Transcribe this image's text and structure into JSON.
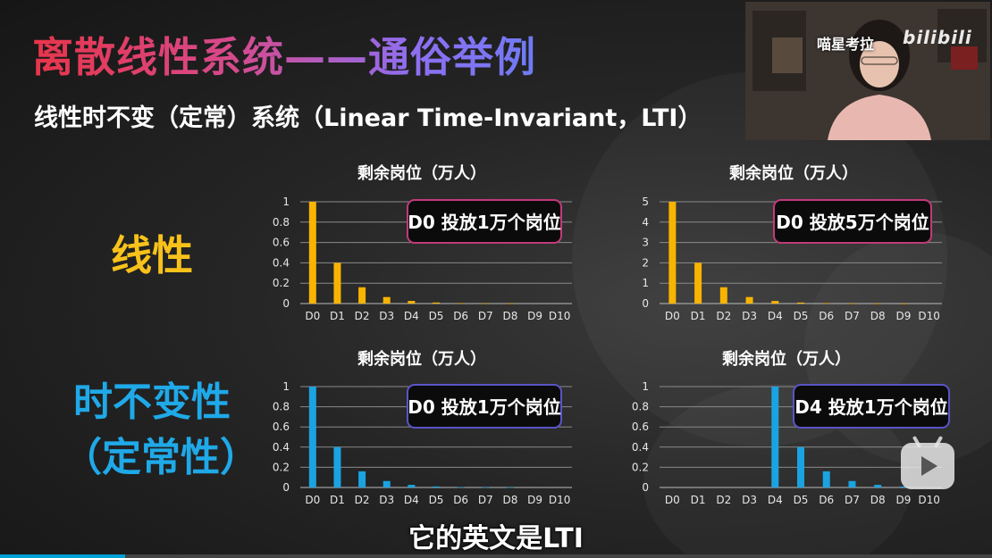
{
  "slide": {
    "title": "离散线性系统——通俗举例",
    "subtitle": "线性时不变（定常）系统（Linear Time-Invariant，LTI）",
    "row_labels": {
      "linear": "线性",
      "time_invariant_line1": "时不变性",
      "time_invariant_line2": "（定常性）"
    }
  },
  "overlay": {
    "channel_name": "喵星考拉",
    "brand_logo": "bilibili",
    "caption": "它的英文是LTI",
    "play_button_icon": "bilibili-tv-play-icon",
    "progress_fraction": 0.126
  },
  "colors": {
    "linear_series": "#f8b400",
    "ti_series": "#1aa3e0",
    "annotation_border_linear": "#c23a7a",
    "annotation_border_ti": "#5a54c8"
  },
  "chart_data": [
    {
      "type": "bar",
      "title": "剩余岗位（万人）",
      "annotation": "D0 投放1万个岗位",
      "categories": [
        "D0",
        "D1",
        "D2",
        "D3",
        "D4",
        "D5",
        "D6",
        "D7",
        "D8",
        "D9",
        "D10"
      ],
      "values": [
        1,
        0.4,
        0.16,
        0.064,
        0.026,
        0.01,
        0.004,
        0.002,
        0.001,
        0,
        0
      ],
      "yticks": [
        "0",
        "0.2",
        "0.4",
        "0.6",
        "0.8",
        "1"
      ],
      "ylim": [
        0,
        1
      ],
      "color": "#f8b400"
    },
    {
      "type": "bar",
      "title": "剩余岗位（万人）",
      "annotation": "D0 投放5万个岗位",
      "categories": [
        "D0",
        "D1",
        "D2",
        "D3",
        "D4",
        "D5",
        "D6",
        "D7",
        "D8",
        "D9",
        "D10"
      ],
      "values": [
        5,
        2,
        0.8,
        0.32,
        0.128,
        0.05,
        0.02,
        0.008,
        0.003,
        0.001,
        0
      ],
      "yticks": [
        "0",
        "1",
        "2",
        "3",
        "4",
        "5"
      ],
      "ylim": [
        0,
        5
      ],
      "color": "#f8b400"
    },
    {
      "type": "bar",
      "title": "剩余岗位（万人）",
      "annotation": "D0 投放1万个岗位",
      "categories": [
        "D0",
        "D1",
        "D2",
        "D3",
        "D4",
        "D5",
        "D6",
        "D7",
        "D8",
        "D9",
        "D10"
      ],
      "values": [
        1,
        0.4,
        0.16,
        0.064,
        0.026,
        0.01,
        0.004,
        0.002,
        0.001,
        0,
        0
      ],
      "yticks": [
        "0",
        "0.2",
        "0.4",
        "0.6",
        "0.8",
        "1"
      ],
      "ylim": [
        0,
        1
      ],
      "color": "#1aa3e0"
    },
    {
      "type": "bar",
      "title": "剩余岗位（万人）",
      "annotation": "D4 投放1万个岗位",
      "categories": [
        "D0",
        "D1",
        "D2",
        "D3",
        "D4",
        "D5",
        "D6",
        "D7",
        "D8",
        "D9",
        "D10"
      ],
      "values": [
        0,
        0,
        0,
        0,
        1,
        0.4,
        0.16,
        0.064,
        0.026,
        0.01,
        0.004
      ],
      "yticks": [
        "0",
        "0.2",
        "0.4",
        "0.6",
        "0.8",
        "1"
      ],
      "ylim": [
        0,
        1
      ],
      "color": "#1aa3e0"
    }
  ]
}
